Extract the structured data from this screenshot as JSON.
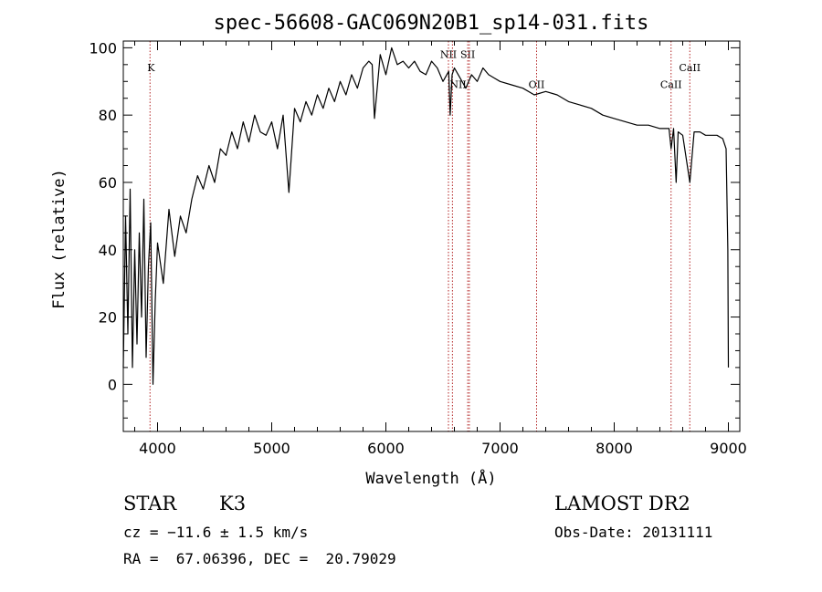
{
  "chart_data": {
    "type": "line",
    "title": "spec-56608-GAC069N20B1_sp14-031.fits",
    "xlabel": "Wavelength (Å)",
    "ylabel": "Flux (relative)",
    "xlim": [
      3700,
      9100
    ],
    "ylim": [
      -14,
      102
    ],
    "xticks": [
      4000,
      5000,
      6000,
      7000,
      8000,
      9000
    ],
    "yticks": [
      0,
      20,
      40,
      60,
      80,
      100
    ],
    "grid": false,
    "line_color": "#000000",
    "marker_color": "#b22222",
    "x": [
      3700,
      3720,
      3740,
      3760,
      3780,
      3800,
      3820,
      3840,
      3860,
      3880,
      3900,
      3920,
      3940,
      3960,
      3980,
      4000,
      4050,
      4100,
      4150,
      4200,
      4250,
      4300,
      4350,
      4400,
      4450,
      4500,
      4550,
      4600,
      4650,
      4700,
      4750,
      4800,
      4850,
      4900,
      4950,
      5000,
      5050,
      5100,
      5150,
      5200,
      5250,
      5300,
      5350,
      5400,
      5450,
      5500,
      5550,
      5600,
      5650,
      5700,
      5750,
      5800,
      5850,
      5880,
      5900,
      5950,
      6000,
      6050,
      6100,
      6150,
      6200,
      6250,
      6300,
      6350,
      6400,
      6450,
      6500,
      6550,
      6563,
      6580,
      6600,
      6650,
      6700,
      6750,
      6800,
      6850,
      6900,
      6950,
      7000,
      7100,
      7200,
      7300,
      7400,
      7500,
      7600,
      7700,
      7800,
      7900,
      8000,
      8100,
      8200,
      8300,
      8400,
      8480,
      8498,
      8520,
      8542,
      8560,
      8600,
      8662,
      8700,
      8750,
      8800,
      8850,
      8900,
      8950,
      8980,
      8995,
      9000
    ],
    "y": [
      5,
      50,
      15,
      58,
      5,
      40,
      12,
      45,
      20,
      55,
      8,
      35,
      48,
      0,
      25,
      42,
      30,
      52,
      38,
      50,
      45,
      55,
      62,
      58,
      65,
      60,
      70,
      68,
      75,
      70,
      78,
      72,
      80,
      75,
      74,
      78,
      70,
      80,
      57,
      82,
      78,
      84,
      80,
      86,
      82,
      88,
      84,
      90,
      86,
      92,
      88,
      94,
      96,
      95,
      79,
      98,
      92,
      100,
      95,
      96,
      94,
      96,
      93,
      92,
      96,
      94,
      90,
      93,
      80,
      92,
      94,
      91,
      88,
      92,
      90,
      94,
      92,
      91,
      90,
      89,
      88,
      86,
      87,
      86,
      84,
      83,
      82,
      80,
      79,
      78,
      77,
      77,
      76,
      76,
      70,
      76,
      60,
      75,
      74,
      60,
      75,
      75,
      74,
      74,
      74,
      73,
      70,
      40,
      5
    ],
    "line_markers": [
      {
        "label": "K",
        "x": 3934,
        "label_y": 93,
        "label_align": "start"
      },
      {
        "label": "NII",
        "x": 6548,
        "label_y": 97,
        "label_align": "middle"
      },
      {
        "label": "NII",
        "x": 6583,
        "label_y": 88,
        "label_align": "start"
      },
      {
        "label": "SII",
        "x": 6717,
        "label_y": 97,
        "label_align": "middle"
      },
      {
        "label": "",
        "x": 6731,
        "label_y": 0,
        "label_align": "middle"
      },
      {
        "label": "OII",
        "x": 7320,
        "label_y": 88,
        "label_align": "middle"
      },
      {
        "label": "CaII",
        "x": 8498,
        "label_y": 88,
        "label_align": "middle"
      },
      {
        "label": "CaII",
        "x": 8662,
        "label_y": 93,
        "label_align": "middle"
      }
    ]
  },
  "info": {
    "object_type": "STAR",
    "subclass": "K3",
    "survey": "LAMOST DR2",
    "cz": "cz = −11.6 ± 1.5 km/s",
    "obs_date": "Obs-Date: 20131111",
    "coords": "RA =  67.06396, DEC =  20.79029"
  }
}
